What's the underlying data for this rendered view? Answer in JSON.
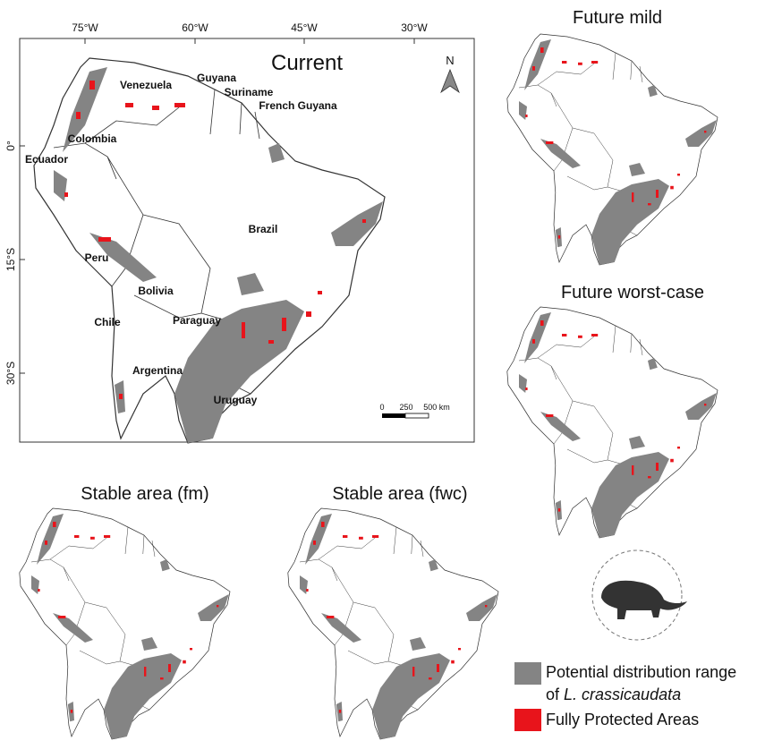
{
  "main_map": {
    "title": "Current",
    "x_labels": [
      "75°W",
      "60°W",
      "45°W",
      "30°W"
    ],
    "y_labels": [
      "0°",
      "15°S",
      "30°S"
    ],
    "north": "N",
    "countries": [
      "Venezuela",
      "Guyana",
      "Suriname",
      "French Guyana",
      "Colombia",
      "Ecuador",
      "Brazil",
      "Peru",
      "Bolivia",
      "Chile",
      "Paraguay",
      "Argentina",
      "Uruguay"
    ],
    "scale_labels": [
      "0",
      "250",
      "500 km"
    ]
  },
  "panels": [
    {
      "title": "Future mild"
    },
    {
      "title": "Future worst-case"
    },
    {
      "title": "Stable area (fm)"
    },
    {
      "title": "Stable area (fwc)"
    }
  ],
  "legend": {
    "items": [
      {
        "label_lines": [
          "Potential distribution range",
          "of",
          "L. crassicaudata"
        ]
      },
      {
        "label_lines": [
          "Fully Protected Areas"
        ]
      }
    ]
  }
}
